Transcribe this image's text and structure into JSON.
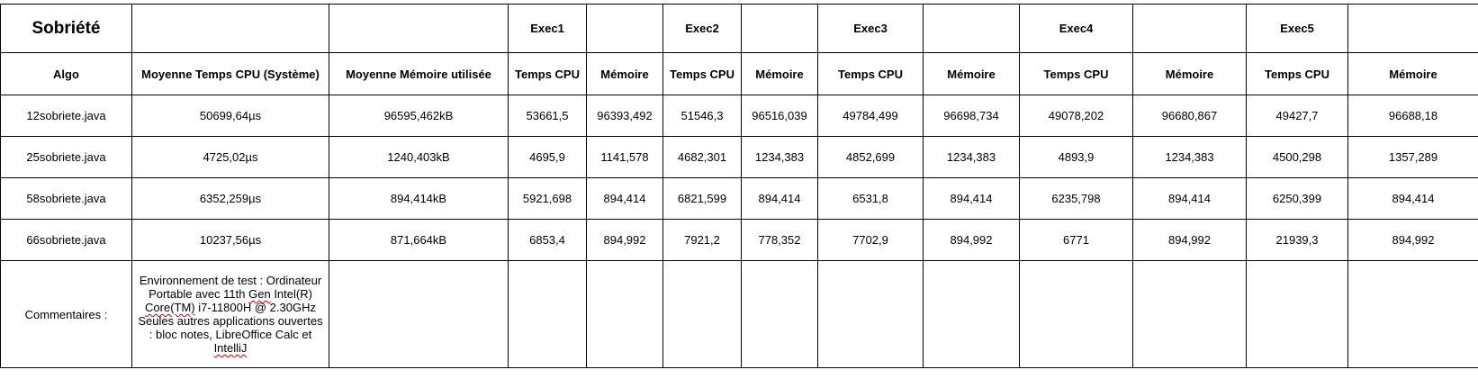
{
  "title": "Sobriété",
  "exec_labels": [
    "Exec1",
    "Exec2",
    "Exec3",
    "Exec4",
    "Exec5"
  ],
  "headers": {
    "algo": "Algo",
    "avg_cpu": "Moyenne Temps CPU (Système)",
    "avg_mem": "Moyenne Mémoire utilisée",
    "cpu": "Temps CPU",
    "mem": "Mémoire"
  },
  "rows": [
    {
      "algo": "12sobriete.java",
      "avg_cpu": "50699,64µs",
      "avg_mem": "96595,462kB",
      "execs": [
        {
          "cpu": "53661,5",
          "mem": "96393,492"
        },
        {
          "cpu": "51546,3",
          "mem": "96516,039"
        },
        {
          "cpu": "49784,499",
          "mem": "96698,734"
        },
        {
          "cpu": "49078,202",
          "mem": "96680,867"
        },
        {
          "cpu": "49427,7",
          "mem": "96688,18"
        }
      ]
    },
    {
      "algo": "25sobriete.java",
      "avg_cpu": "4725,02µs",
      "avg_mem": "1240,403kB",
      "execs": [
        {
          "cpu": "4695,9",
          "mem": "1141,578"
        },
        {
          "cpu": "4682,301",
          "mem": "1234,383"
        },
        {
          "cpu": "4852,699",
          "mem": "1234,383"
        },
        {
          "cpu": "4893,9",
          "mem": "1234,383"
        },
        {
          "cpu": "4500,298",
          "mem": "1357,289"
        }
      ]
    },
    {
      "algo": "58sobriete.java",
      "avg_cpu": "6352,259µs",
      "avg_mem": "894,414kB",
      "execs": [
        {
          "cpu": "5921,698",
          "mem": "894,414"
        },
        {
          "cpu": "6821,599",
          "mem": "894,414"
        },
        {
          "cpu": "6531,8",
          "mem": "894,414"
        },
        {
          "cpu": "6235,798",
          "mem": "894,414"
        },
        {
          "cpu": "6250,399",
          "mem": "894,414"
        }
      ]
    },
    {
      "algo": "66sobriete.java",
      "avg_cpu": "10237,56µs",
      "avg_mem": "871,664kB",
      "execs": [
        {
          "cpu": "6853,4",
          "mem": "894,992"
        },
        {
          "cpu": "7921,2",
          "mem": "778,352"
        },
        {
          "cpu": "7702,9",
          "mem": "894,992"
        },
        {
          "cpu": "6771",
          "mem": "894,992"
        },
        {
          "cpu": "21939,3",
          "mem": "894,992"
        }
      ]
    }
  ],
  "comment": {
    "label": "Commentaires :",
    "parts": [
      "Environnement de test : Ordinateur Portable avec 11th ",
      "Gen",
      " Intel(R) ",
      "Core(TM)",
      " i7-11800H @ 2.30GHz            Seules autres applications ouvertes : bloc notes, LibreOffice Calc et ",
      "IntelliJ"
    ]
  }
}
